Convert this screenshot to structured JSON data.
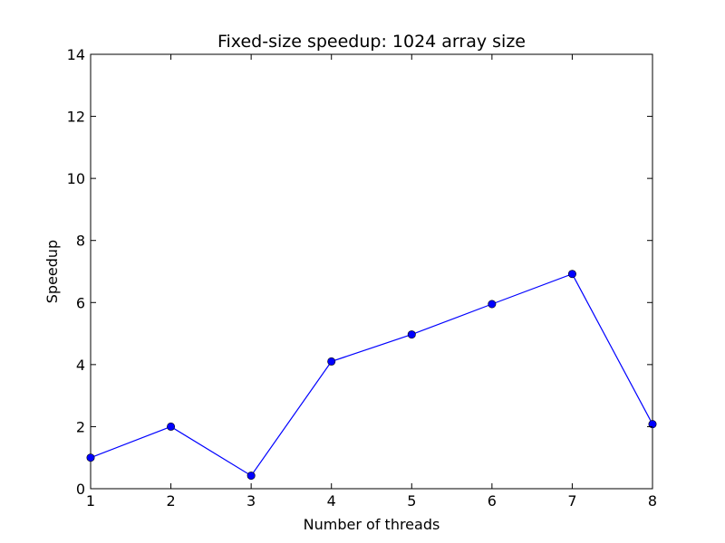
{
  "chart_data": {
    "type": "line",
    "title": "Fixed-size speedup: 1024 array size",
    "xlabel": "Number of threads",
    "ylabel": "Speedup",
    "xlim": [
      1,
      8
    ],
    "ylim": [
      0,
      14
    ],
    "xticks": [
      "1",
      "2",
      "3",
      "4",
      "5",
      "6",
      "7",
      "8"
    ],
    "yticks": [
      "0",
      "2",
      "4",
      "6",
      "8",
      "10",
      "12",
      "14"
    ],
    "grid": false,
    "series": [
      {
        "color": "#0000ff",
        "marker": "circle",
        "x": [
          1,
          2,
          3,
          4,
          5,
          6,
          7,
          8
        ],
        "y": [
          1.0,
          2.0,
          0.42,
          4.1,
          4.97,
          5.95,
          6.92,
          2.08
        ]
      }
    ]
  }
}
